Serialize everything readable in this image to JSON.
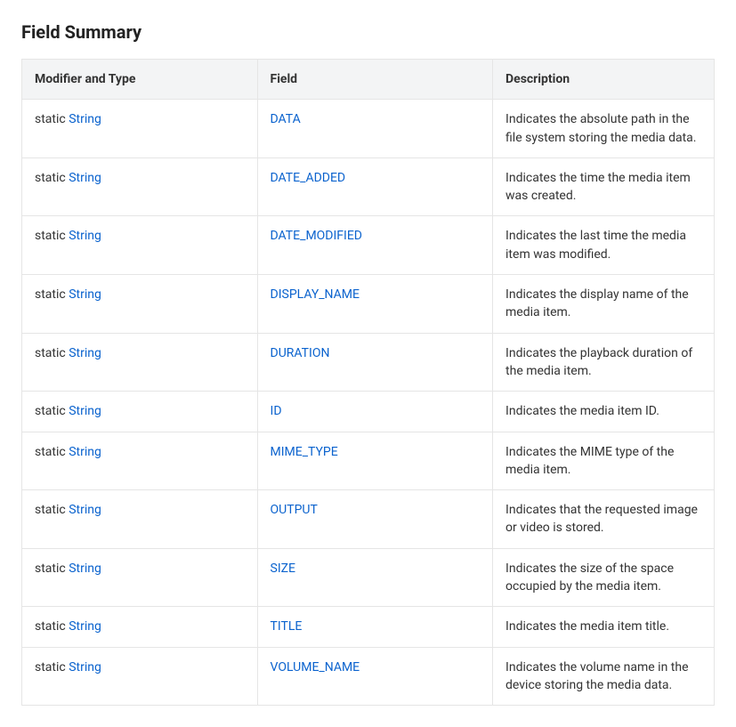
{
  "title": "Field Summary",
  "columns": {
    "modifier": "Modifier and Type",
    "field": "Field",
    "description": "Description"
  },
  "modifier_prefix": "static ",
  "type_link": "String",
  "rows": [
    {
      "field": "DATA",
      "description": "Indicates the absolute path in the file system storing the media data."
    },
    {
      "field": "DATE_ADDED",
      "description": "Indicates the time the media item was created."
    },
    {
      "field": "DATE_MODIFIED",
      "description": "Indicates the last time the media item was modified."
    },
    {
      "field": "DISPLAY_NAME",
      "description": "Indicates the display name of the media item."
    },
    {
      "field": "DURATION",
      "description": "Indicates the playback duration of the media item."
    },
    {
      "field": "ID",
      "description": "Indicates the media item ID."
    },
    {
      "field": "MIME_TYPE",
      "description": "Indicates the MIME type of the media item."
    },
    {
      "field": "OUTPUT",
      "description": "Indicates that the requested image or video is stored."
    },
    {
      "field": "SIZE",
      "description": "Indicates the size of the space occupied by the media item."
    },
    {
      "field": "TITLE",
      "description": "Indicates the media item title."
    },
    {
      "field": "VOLUME_NAME",
      "description": "Indicates the volume name in the device storing the media data."
    }
  ]
}
